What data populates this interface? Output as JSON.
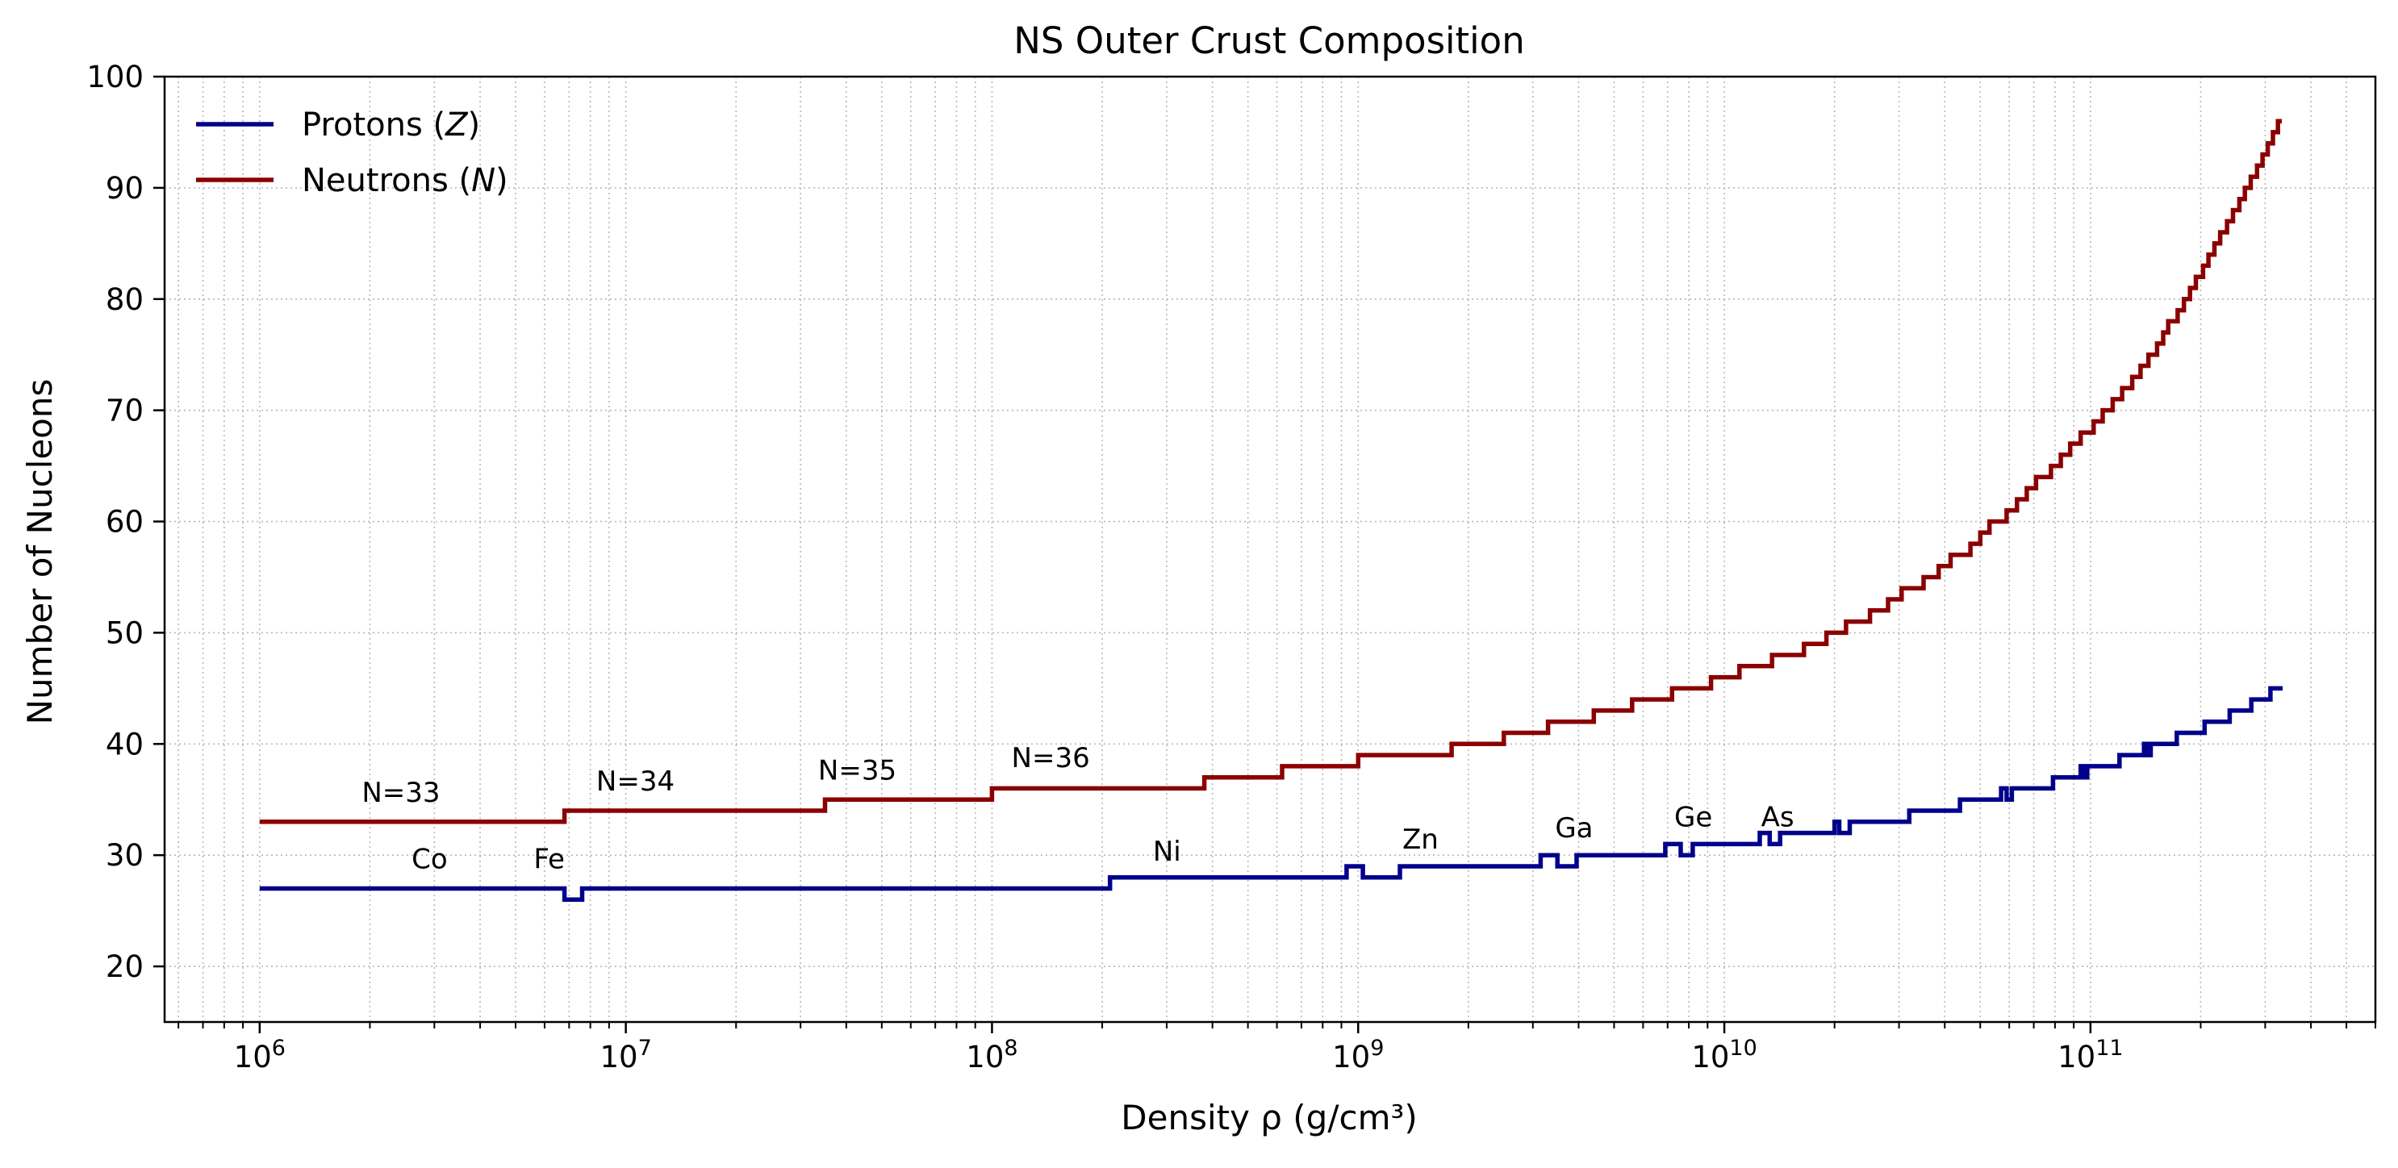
{
  "chart_data": {
    "type": "line",
    "title": "NS Outer Crust Composition",
    "xlabel": "Density ρ (g/cm³)",
    "ylabel": "Number of Nucleons",
    "x_scale": "log",
    "xlim": [
      550000,
      600000000000
    ],
    "ylim": [
      15,
      100
    ],
    "x_ticks": [
      1000000,
      10000000,
      100000000,
      1000000000,
      10000000000,
      100000000000
    ],
    "x_tick_labels": [
      {
        "base": "10",
        "exp": "6"
      },
      {
        "base": "10",
        "exp": "7"
      },
      {
        "base": "10",
        "exp": "8"
      },
      {
        "base": "10",
        "exp": "9"
      },
      {
        "base": "10",
        "exp": "10"
      },
      {
        "base": "10",
        "exp": "11"
      }
    ],
    "y_ticks": [
      20,
      30,
      40,
      50,
      60,
      70,
      80,
      90,
      100
    ],
    "y_tick_labels": [
      "20",
      "30",
      "40",
      "50",
      "60",
      "70",
      "80",
      "90",
      "100"
    ],
    "grid": true,
    "grid_style": "dotted",
    "legend_position": "top-left",
    "legend": [
      {
        "label": "Protons (",
        "symbol": "Z",
        "close": ")",
        "color": "#00008b"
      },
      {
        "label": "Neutrons (",
        "symbol": "N",
        "close": ")",
        "color": "#8b0000"
      }
    ],
    "series": [
      {
        "name": "Protons (Z)",
        "color": "#00008b",
        "step": true,
        "points": [
          [
            1000000,
            27
          ],
          [
            6800000,
            27
          ],
          [
            6800000,
            26
          ],
          [
            7600000,
            26
          ],
          [
            7600000,
            27
          ],
          [
            210000000,
            27
          ],
          [
            210000000,
            28
          ],
          [
            930000000,
            28
          ],
          [
            930000000,
            29
          ],
          [
            1030000000,
            29
          ],
          [
            1030000000,
            28
          ],
          [
            1300000000,
            28
          ],
          [
            1300000000,
            29
          ],
          [
            3150000000,
            29
          ],
          [
            3150000000,
            30
          ],
          [
            3500000000,
            30
          ],
          [
            3500000000,
            29
          ],
          [
            3950000000,
            29
          ],
          [
            3950000000,
            30
          ],
          [
            6900000000,
            30
          ],
          [
            6900000000,
            31
          ],
          [
            7600000000,
            31
          ],
          [
            7600000000,
            30
          ],
          [
            8200000000,
            30
          ],
          [
            8200000000,
            31
          ],
          [
            12500000000,
            31
          ],
          [
            12500000000,
            32
          ],
          [
            13300000000,
            32
          ],
          [
            13300000000,
            31
          ],
          [
            14200000000,
            31
          ],
          [
            14200000000,
            32
          ],
          [
            20000000000,
            32
          ],
          [
            20000000000,
            33
          ],
          [
            20600000000,
            33
          ],
          [
            20600000000,
            32
          ],
          [
            22000000000,
            32
          ],
          [
            22000000000,
            33
          ],
          [
            32000000000,
            33
          ],
          [
            32000000000,
            34
          ],
          [
            44000000000,
            34
          ],
          [
            44000000000,
            35
          ],
          [
            57000000000,
            35
          ],
          [
            57000000000,
            36
          ],
          [
            59000000000,
            36
          ],
          [
            59000000000,
            35
          ],
          [
            61000000000,
            35
          ],
          [
            61000000000,
            36
          ],
          [
            79000000000,
            36
          ],
          [
            79000000000,
            37
          ],
          [
            94000000000,
            37
          ],
          [
            94000000000,
            38
          ],
          [
            96000000000,
            38
          ],
          [
            96000000000,
            37
          ],
          [
            98000000000,
            37
          ],
          [
            98000000000,
            38
          ],
          [
            120000000000,
            38
          ],
          [
            120000000000,
            39
          ],
          [
            140000000000,
            39
          ],
          [
            140000000000,
            40
          ],
          [
            142000000000,
            40
          ],
          [
            142000000000,
            39
          ],
          [
            146000000000,
            39
          ],
          [
            146000000000,
            40
          ],
          [
            172000000000,
            40
          ],
          [
            172000000000,
            41
          ],
          [
            205000000000,
            41
          ],
          [
            205000000000,
            42
          ],
          [
            240000000000,
            42
          ],
          [
            240000000000,
            43
          ],
          [
            275000000000,
            43
          ],
          [
            275000000000,
            44
          ],
          [
            310000000000,
            44
          ],
          [
            310000000000,
            45
          ],
          [
            335000000000,
            45
          ]
        ]
      },
      {
        "name": "Neutrons (N)",
        "color": "#8b0000",
        "step": true,
        "points": [
          [
            1000000,
            33
          ],
          [
            6800000,
            33
          ],
          [
            6800000,
            34
          ],
          [
            35000000,
            34
          ],
          [
            35000000,
            35
          ],
          [
            100000000,
            35
          ],
          [
            100000000,
            36
          ],
          [
            380000000,
            36
          ],
          [
            380000000,
            37
          ],
          [
            620000000,
            37
          ],
          [
            620000000,
            38
          ],
          [
            1000000000,
            38
          ],
          [
            1000000000,
            39
          ],
          [
            1800000000,
            39
          ],
          [
            1800000000,
            40
          ],
          [
            2500000000,
            40
          ],
          [
            2500000000,
            41
          ],
          [
            3300000000,
            41
          ],
          [
            3300000000,
            42
          ],
          [
            4400000000,
            42
          ],
          [
            4400000000,
            43
          ],
          [
            5600000000,
            43
          ],
          [
            5600000000,
            44
          ],
          [
            7200000000,
            44
          ],
          [
            7200000000,
            45
          ],
          [
            9200000000,
            45
          ],
          [
            9200000000,
            46
          ],
          [
            11000000000,
            46
          ],
          [
            11000000000,
            47
          ],
          [
            13500000000,
            47
          ],
          [
            13500000000,
            48
          ],
          [
            16500000000,
            48
          ],
          [
            16500000000,
            49
          ],
          [
            19000000000,
            49
          ],
          [
            19000000000,
            50
          ],
          [
            21500000000,
            50
          ],
          [
            21500000000,
            51
          ],
          [
            25000000000,
            51
          ],
          [
            25000000000,
            52
          ],
          [
            28000000000,
            52
          ],
          [
            28000000000,
            53
          ],
          [
            30500000000,
            53
          ],
          [
            30500000000,
            54
          ],
          [
            35000000000,
            54
          ],
          [
            35000000000,
            55
          ],
          [
            38500000000,
            55
          ],
          [
            38500000000,
            56
          ],
          [
            41500000000,
            56
          ],
          [
            41500000000,
            57
          ],
          [
            47000000000,
            57
          ],
          [
            47000000000,
            58
          ],
          [
            50000000000,
            58
          ],
          [
            50000000000,
            59
          ],
          [
            53000000000,
            59
          ],
          [
            53000000000,
            60
          ],
          [
            59000000000,
            60
          ],
          [
            59000000000,
            61
          ],
          [
            63000000000,
            61
          ],
          [
            63000000000,
            62
          ],
          [
            67000000000,
            62
          ],
          [
            67000000000,
            63
          ],
          [
            71000000000,
            63
          ],
          [
            71000000000,
            64
          ],
          [
            78000000000,
            64
          ],
          [
            78000000000,
            65
          ],
          [
            83000000000,
            65
          ],
          [
            83000000000,
            66
          ],
          [
            88000000000,
            66
          ],
          [
            88000000000,
            67
          ],
          [
            94000000000,
            67
          ],
          [
            94000000000,
            68
          ],
          [
            102000000000,
            68
          ],
          [
            102000000000,
            69
          ],
          [
            108000000000,
            69
          ],
          [
            108000000000,
            70
          ],
          [
            115000000000,
            70
          ],
          [
            115000000000,
            71
          ],
          [
            122000000000,
            71
          ],
          [
            122000000000,
            72
          ],
          [
            130000000000,
            72
          ],
          [
            130000000000,
            73
          ],
          [
            137000000000,
            73
          ],
          [
            137000000000,
            74
          ],
          [
            144000000000,
            74
          ],
          [
            144000000000,
            75
          ],
          [
            152000000000,
            75
          ],
          [
            152000000000,
            76
          ],
          [
            158000000000,
            76
          ],
          [
            158000000000,
            77
          ],
          [
            163000000000,
            77
          ],
          [
            163000000000,
            78
          ],
          [
            173000000000,
            78
          ],
          [
            173000000000,
            79
          ],
          [
            180000000000,
            79
          ],
          [
            180000000000,
            80
          ],
          [
            187000000000,
            80
          ],
          [
            187000000000,
            81
          ],
          [
            194000000000,
            81
          ],
          [
            194000000000,
            82
          ],
          [
            203000000000,
            82
          ],
          [
            203000000000,
            83
          ],
          [
            210000000000,
            83
          ],
          [
            210000000000,
            84
          ],
          [
            218000000000,
            84
          ],
          [
            218000000000,
            85
          ],
          [
            226000000000,
            85
          ],
          [
            226000000000,
            86
          ],
          [
            236000000000,
            86
          ],
          [
            236000000000,
            87
          ],
          [
            245000000000,
            87
          ],
          [
            245000000000,
            88
          ],
          [
            255000000000,
            88
          ],
          [
            255000000000,
            89
          ],
          [
            264000000000,
            89
          ],
          [
            264000000000,
            90
          ],
          [
            274000000000,
            90
          ],
          [
            274000000000,
            91
          ],
          [
            285000000000,
            91
          ],
          [
            285000000000,
            92
          ],
          [
            295000000000,
            92
          ],
          [
            295000000000,
            93
          ],
          [
            305000000000,
            93
          ],
          [
            305000000000,
            94
          ],
          [
            315000000000,
            94
          ],
          [
            315000000000,
            95
          ],
          [
            325000000000,
            95
          ],
          [
            325000000000,
            96
          ],
          [
            333000000000,
            96
          ]
        ]
      }
    ],
    "annotations": [
      {
        "text": "N=33",
        "x": 1900000,
        "y": 34.8
      },
      {
        "text": "N=34",
        "x": 8300000,
        "y": 35.8
      },
      {
        "text": "N=35",
        "x": 33500000,
        "y": 36.8
      },
      {
        "text": "N=36",
        "x": 113000000,
        "y": 37.9
      },
      {
        "text": "Co",
        "x": 2600000,
        "y": 28.8
      },
      {
        "text": "Fe",
        "x": 5600000,
        "y": 28.8
      },
      {
        "text": "Ni",
        "x": 275000000,
        "y": 29.5
      },
      {
        "text": "Zn",
        "x": 1320000000,
        "y": 30.6
      },
      {
        "text": "Ga",
        "x": 3450000000,
        "y": 31.6
      },
      {
        "text": "Ge",
        "x": 7300000000,
        "y": 32.6
      },
      {
        "text": "As",
        "x": 12600000000,
        "y": 32.6
      }
    ]
  }
}
